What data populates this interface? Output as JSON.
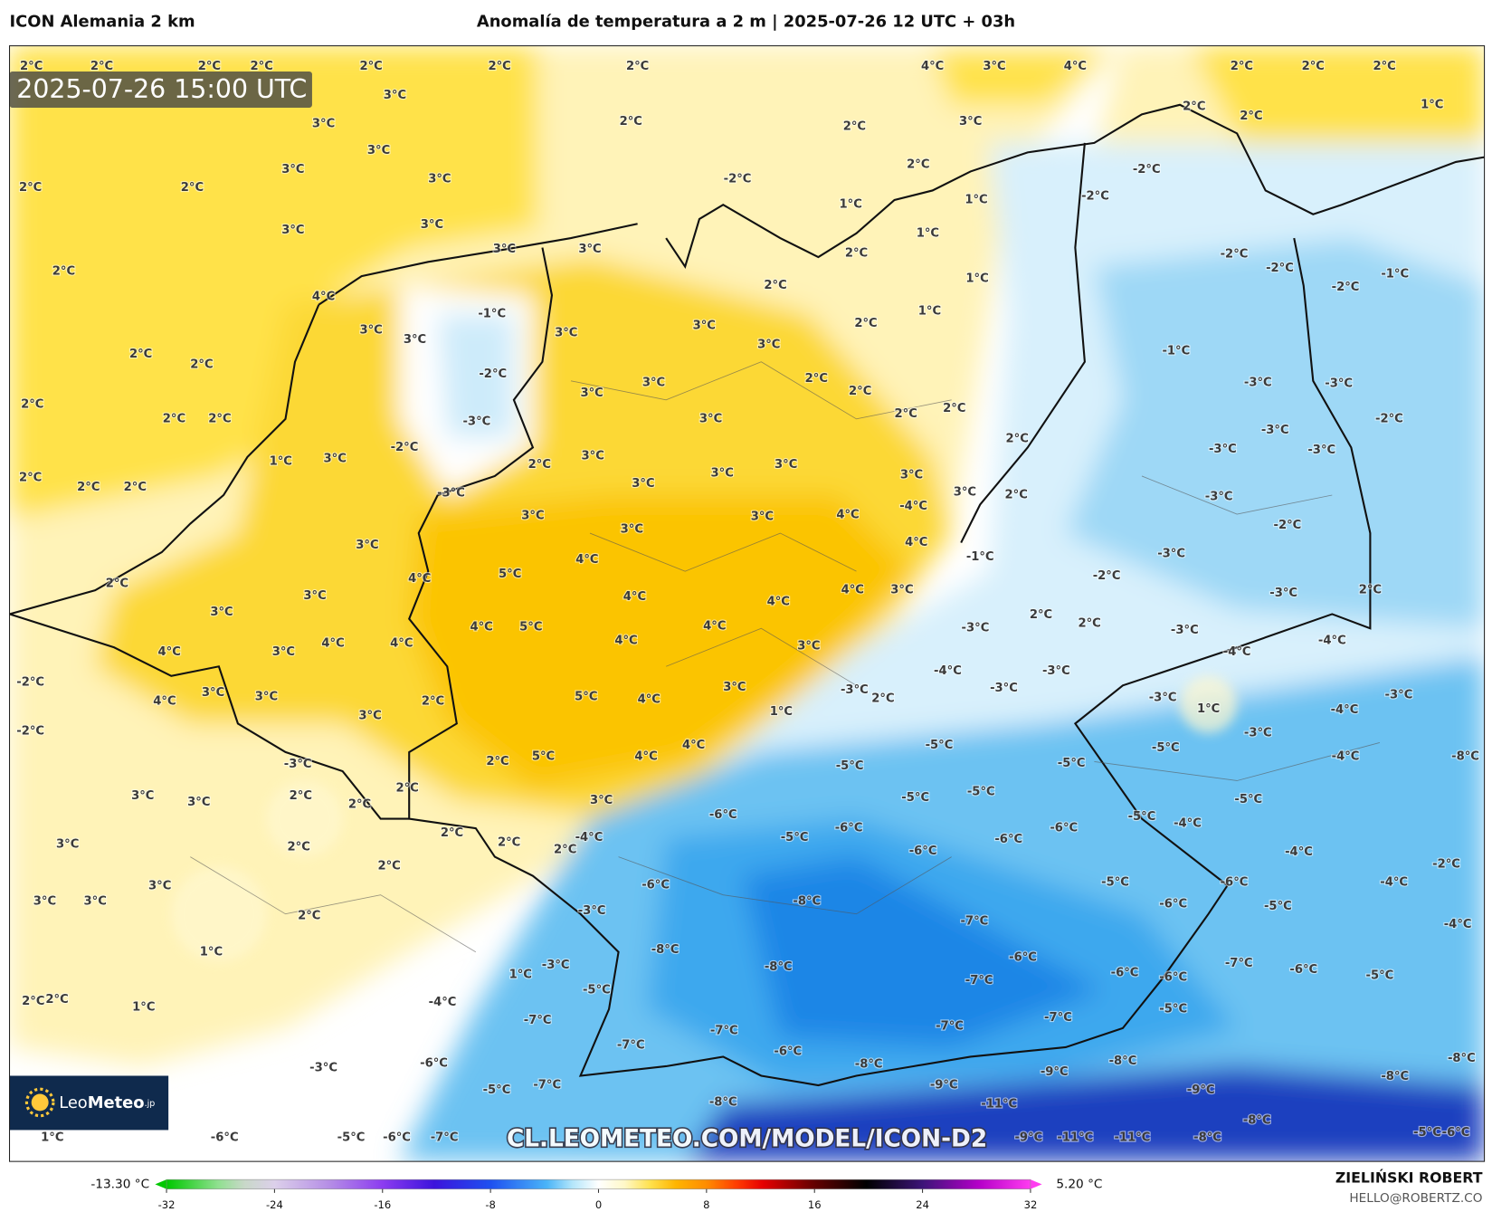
{
  "header": {
    "model": "ICON Alemania 2 km",
    "title": "Anomalía de temperatura a 2 m | 2025-07-26 12 UTC + 03h"
  },
  "map": {
    "timestamp": "2025-07-26 15:00 UTC",
    "labels": [
      "1°C",
      "2°C",
      "3°C",
      "4°C",
      "5°C",
      "-1°C",
      "-2°C",
      "-3°C",
      "-4°C",
      "-5°C",
      "-6°C",
      "-7°C",
      "-8°C",
      "-9°C",
      "-11°C"
    ],
    "watermark": "CL.LEOMETEO.COM/MODEL/ICON-D2",
    "logo": [
      "Leo",
      "Meteo",
      ".jp"
    ]
  },
  "colorbar": {
    "ticks": [
      -32,
      -24,
      -16,
      -8,
      0,
      8,
      16,
      24,
      32
    ],
    "lim": [
      -32,
      32
    ],
    "min": {
      "value": -13.3,
      "label": "-13.30 °C"
    },
    "max": {
      "value": 5.2,
      "label": "5.20 °C"
    }
  },
  "credits": {
    "author": "ZIELIŃSKI ROBERT",
    "contact": "HELLO@ROBERTZ.CO"
  }
}
